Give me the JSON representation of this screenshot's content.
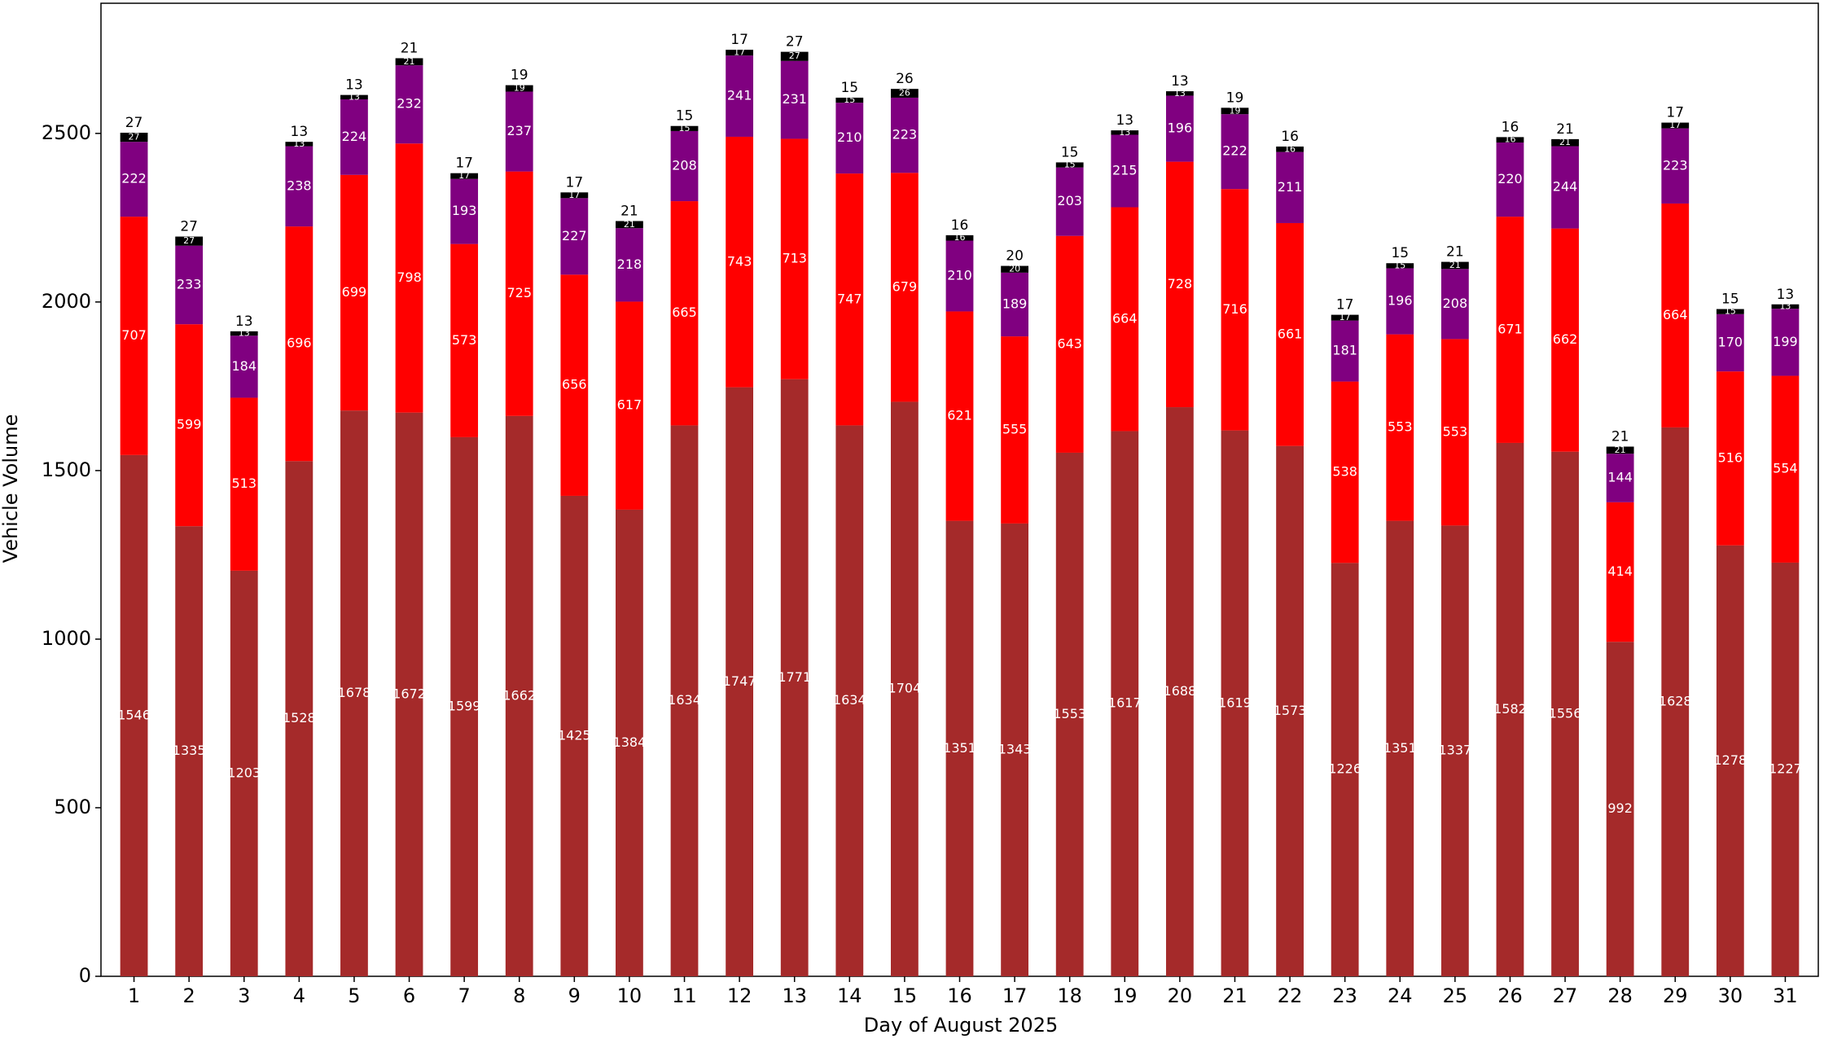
{
  "chart_data": {
    "type": "stacked_bar",
    "x_label": "Day of August 2025",
    "y_label": "Vehicle Volume",
    "categories": [
      "1",
      "2",
      "3",
      "4",
      "5",
      "6",
      "7",
      "8",
      "9",
      "10",
      "11",
      "12",
      "13",
      "14",
      "15",
      "16",
      "17",
      "18",
      "19",
      "20",
      "21",
      "22",
      "23",
      "24",
      "25",
      "26",
      "27",
      "28",
      "29",
      "30",
      "31"
    ],
    "series": [
      {
        "color": "#a52a2a",
        "values": [
          1546,
          1335,
          1203,
          1528,
          1678,
          1672,
          1599,
          1662,
          1425,
          1384,
          1634,
          1747,
          1771,
          1634,
          1704,
          1351,
          1343,
          1553,
          1617,
          1688,
          1619,
          1573,
          1226,
          1351,
          1337,
          1582,
          1556,
          992,
          1628,
          1278,
          1227
        ]
      },
      {
        "color": "#ff0000",
        "values": [
          707,
          599,
          513,
          696,
          699,
          798,
          573,
          725,
          656,
          617,
          665,
          743,
          713,
          747,
          679,
          621,
          555,
          643,
          664,
          728,
          716,
          661,
          538,
          553,
          553,
          671,
          662,
          414,
          664,
          516,
          554
        ]
      },
      {
        "color": "#800080",
        "values": [
          222,
          233,
          184,
          238,
          224,
          232,
          193,
          237,
          227,
          218,
          208,
          241,
          231,
          210,
          223,
          210,
          189,
          203,
          215,
          196,
          222,
          211,
          181,
          196,
          208,
          220,
          244,
          144,
          223,
          170,
          199
        ]
      },
      {
        "color": "#000000",
        "values": [
          27,
          27,
          13,
          13,
          13,
          21,
          17,
          19,
          17,
          21,
          15,
          17,
          27,
          15,
          26,
          16,
          20,
          15,
          13,
          13,
          19,
          16,
          17,
          15,
          21,
          16,
          21,
          21,
          17,
          15,
          13
        ]
      }
    ],
    "ylim": [
      0,
      2886
    ],
    "yticks": [
      0,
      500,
      1000,
      1500,
      2000,
      2500
    ],
    "grid": false
  }
}
